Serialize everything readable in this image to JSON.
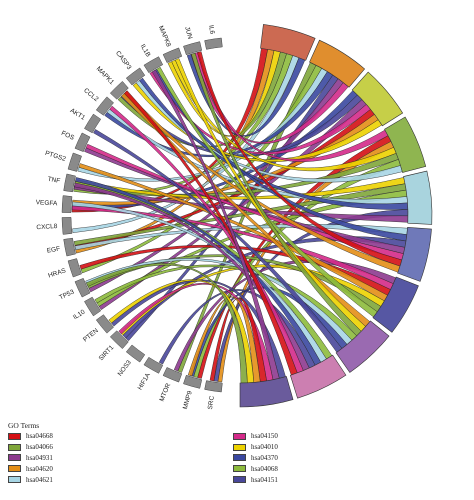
{
  "chart_data": {
    "type": "chord",
    "title": "",
    "genes": [
      "IL6",
      "JUN",
      "MAPK8",
      "IL1B",
      "CASP3",
      "MAPK1",
      "CCL2",
      "AKT1",
      "FOS",
      "PTGS2",
      "TNF",
      "VEGFA",
      "CXCL8",
      "EGF",
      "HRAS",
      "TP53",
      "IL10",
      "PTEN",
      "SIRT1",
      "NOS3",
      "HIF1A",
      "MTOR",
      "MMP9",
      "SRC"
    ],
    "terms": [
      {
        "id": "hsa04668",
        "color": "#cc6a52"
      },
      {
        "id": "hsa04066",
        "color": "#e08e2e"
      },
      {
        "id": "hsa04931",
        "color": "#c6cf48"
      },
      {
        "id": "hsa04620",
        "color": "#8fb550"
      },
      {
        "id": "hsa04621",
        "color": "#a9d4de"
      },
      {
        "id": "hsa04150",
        "color": "#6f79b9"
      },
      {
        "id": "hsa04010",
        "color": "#5657a3"
      },
      {
        "id": "hsa04370",
        "color": "#9a6ab1"
      },
      {
        "id": "hsa04068",
        "color": "#cc7fb1"
      },
      {
        "id": "hsa04151",
        "color": "#6a5b9c"
      }
    ],
    "legend_title": "GO Terms",
    "legend_left": [
      {
        "label": "hsa04668",
        "color": "#d40f14"
      },
      {
        "label": "hsa04066",
        "color": "#7fa63a"
      },
      {
        "label": "hsa04931",
        "color": "#8d3a8f"
      },
      {
        "label": "hsa04620",
        "color": "#e38e16"
      },
      {
        "label": "hsa04621",
        "color": "#a7d5e4"
      }
    ],
    "legend_right": [
      {
        "label": "hsa04150",
        "color": "#d42a8a"
      },
      {
        "label": "hsa04010",
        "color": "#ecd200"
      },
      {
        "label": "hsa04370",
        "color": "#3a48a0"
      },
      {
        "label": "hsa04068",
        "color": "#8dbb3c"
      },
      {
        "label": "hsa04151",
        "color": "#49479a"
      }
    ],
    "ribbon_palette": [
      "#d40f14",
      "#e38e16",
      "#ecd200",
      "#7fa63a",
      "#8dbb3c",
      "#a7d5e4",
      "#3a48a0",
      "#49479a",
      "#8d3a8f",
      "#d42a8a"
    ]
  }
}
